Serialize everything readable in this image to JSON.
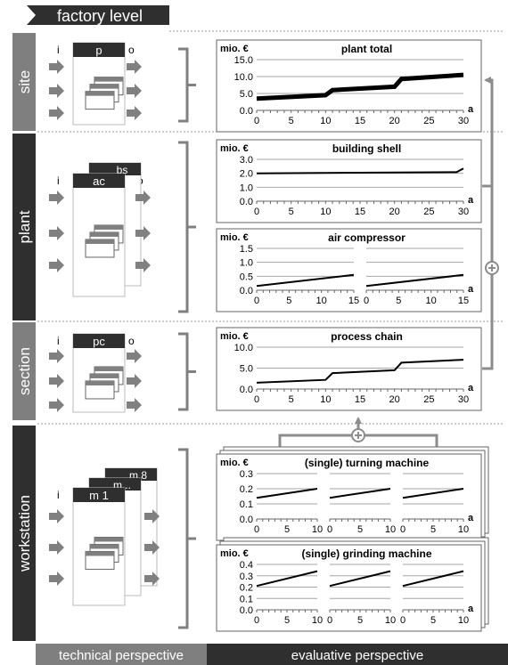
{
  "header": {
    "title": "factory level"
  },
  "levels": {
    "site": "site",
    "plant": "plant",
    "section": "section",
    "workstation": "workstation"
  },
  "footer": {
    "technical": "technical perspective",
    "evaluative": "evaluative perspective"
  },
  "io": {
    "input": "i",
    "output": "o"
  },
  "modules": {
    "site": [
      "p"
    ],
    "plant": [
      "ac",
      "bs"
    ],
    "section": [
      "pc"
    ],
    "workstation": [
      "m 1",
      "m ..",
      "m 8"
    ]
  },
  "colors": {
    "dark": "#2f2f2f",
    "level_bar": "#7f7f7f",
    "arrow": "#808080",
    "connector": "#8c8c8c",
    "grid": "#a6a6a6",
    "plot_line": "#000000"
  },
  "chart_data": [
    {
      "id": "plant-total",
      "type": "line",
      "title": "plant total",
      "ylabel": "mio. €",
      "xlabel": "a",
      "x_ticks": [
        0,
        5,
        10,
        15,
        20,
        25,
        30
      ],
      "y_ticks": [
        "0.0",
        "5.0",
        "10.0",
        "15.0"
      ],
      "xlim": [
        0,
        30
      ],
      "ylim": [
        0,
        15
      ],
      "stroke": "thick",
      "series": [
        {
          "x": [
            0,
            10,
            11,
            20,
            21,
            30
          ],
          "y": [
            3.5,
            4.5,
            6.0,
            7.0,
            9.3,
            10.5
          ]
        }
      ]
    },
    {
      "id": "building-shell",
      "type": "line",
      "title": "building shell",
      "ylabel": "mio. €",
      "xlabel": "a",
      "x_ticks": [
        0,
        5,
        10,
        15,
        20,
        25,
        30
      ],
      "y_ticks": [
        "0.0",
        "1.0",
        "2.0",
        "3.0"
      ],
      "xlim": [
        0,
        30
      ],
      "ylim": [
        0,
        3
      ],
      "series": [
        {
          "x": [
            0,
            29,
            30
          ],
          "y": [
            2.0,
            2.08,
            2.35
          ]
        }
      ]
    },
    {
      "id": "air-compressor",
      "type": "line",
      "title": "air compressor",
      "ylabel": "mio. €",
      "xlabel": "a",
      "panels": 2,
      "x_ticks": [
        0,
        5,
        10,
        15
      ],
      "y_ticks": [
        "0.0",
        "0.5",
        "1.0",
        "1.5"
      ],
      "xlim": [
        0,
        15
      ],
      "ylim": [
        0,
        1.5
      ],
      "series": [
        {
          "x": [
            0,
            15
          ],
          "y": [
            0.15,
            0.55
          ]
        }
      ]
    },
    {
      "id": "process-chain",
      "type": "line",
      "title": "process chain",
      "ylabel": "mio. €",
      "xlabel": "a",
      "x_ticks": [
        0,
        5,
        10,
        15,
        20,
        25,
        30
      ],
      "y_ticks": [
        "0.0",
        "5.0",
        "10.0"
      ],
      "xlim": [
        0,
        30
      ],
      "ylim": [
        0,
        10
      ],
      "series": [
        {
          "x": [
            0,
            10,
            11,
            20,
            21,
            30
          ],
          "y": [
            1.5,
            2.2,
            3.8,
            4.5,
            6.3,
            7.0
          ]
        }
      ]
    },
    {
      "id": "turning-machine",
      "type": "line",
      "title": "(single) turning machine",
      "ylabel": "mio. €",
      "xlabel": "a",
      "panels": 3,
      "x_ticks": [
        0,
        5,
        10
      ],
      "y_ticks": [
        "0.0",
        "0.1",
        "0.2",
        "0.3"
      ],
      "xlim": [
        0,
        10
      ],
      "ylim": [
        0,
        0.3
      ],
      "series": [
        {
          "x": [
            0,
            10
          ],
          "y": [
            0.14,
            0.2
          ]
        }
      ]
    },
    {
      "id": "grinding-machine",
      "type": "line",
      "title": "(single) grinding machine",
      "ylabel": "mio. €",
      "xlabel": "a",
      "panels": 3,
      "x_ticks": [
        0,
        5,
        10
      ],
      "y_ticks": [
        "0.0",
        "0.1",
        "0.2",
        "0.3",
        "0.4"
      ],
      "xlim": [
        0,
        10
      ],
      "ylim": [
        0,
        0.4
      ],
      "series": [
        {
          "x": [
            0,
            10
          ],
          "y": [
            0.21,
            0.34
          ]
        }
      ]
    }
  ]
}
